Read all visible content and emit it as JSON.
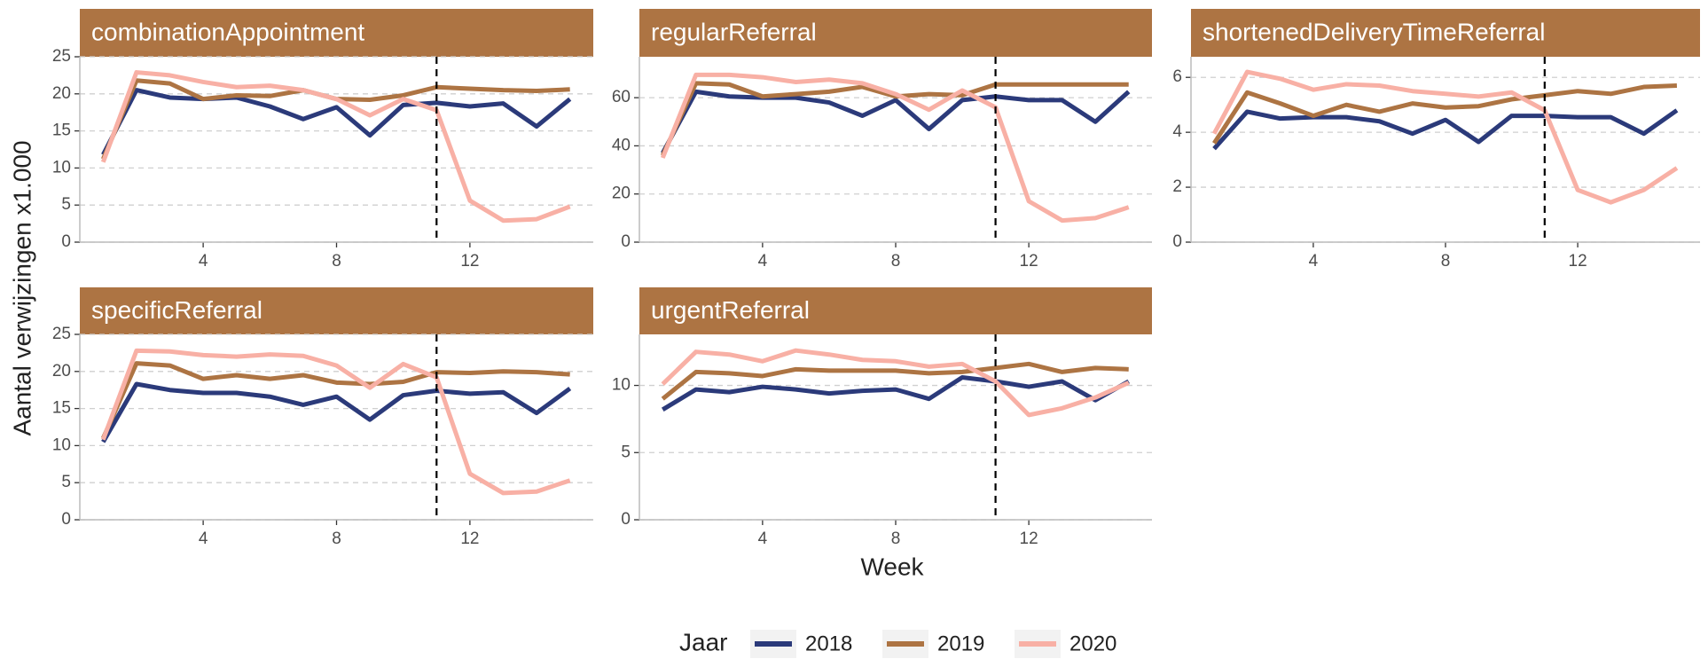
{
  "x_label": "Week",
  "y_label": "Aantal verwijzingen x1.000",
  "legend_title": "Jaar",
  "chart_data": [
    {
      "type": "line",
      "title": "combinationAppointment",
      "x": [
        1,
        2,
        3,
        4,
        5,
        6,
        7,
        8,
        9,
        10,
        11,
        12,
        13,
        14,
        15
      ],
      "series": [
        {
          "name": "2018",
          "color": "#2b3a7a",
          "values": [
            11.8,
            20.5,
            19.5,
            19.3,
            19.5,
            18.3,
            16.6,
            18.2,
            14.4,
            18.5,
            18.8,
            18.3,
            18.7,
            15.6,
            19.3
          ]
        },
        {
          "name": "2019",
          "color": "#ad7443",
          "values": [
            11.2,
            21.8,
            21.4,
            19.3,
            19.8,
            19.7,
            20.5,
            19.3,
            19.2,
            19.8,
            20.9,
            20.7,
            20.5,
            20.4,
            20.6
          ]
        },
        {
          "name": "2020",
          "color": "#f8b0a5",
          "values": [
            10.8,
            22.9,
            22.5,
            21.6,
            20.9,
            21.1,
            20.5,
            19.3,
            17.1,
            19.3,
            17.8,
            5.6,
            2.9,
            3.1,
            4.8
          ]
        }
      ],
      "xlim": [
        0.3,
        15.7
      ],
      "ylim": [
        0,
        25
      ],
      "xticks": [
        4,
        8,
        12
      ],
      "yticks": [
        0,
        5,
        10,
        15,
        20,
        25
      ],
      "vline": 11,
      "grid": true
    },
    {
      "type": "line",
      "title": "regularReferral",
      "x": [
        1,
        2,
        3,
        4,
        5,
        6,
        7,
        8,
        9,
        10,
        11,
        12,
        13,
        14,
        15
      ],
      "series": [
        {
          "name": "2018",
          "color": "#2b3a7a",
          "values": [
            37,
            62.5,
            60.5,
            60,
            60,
            58,
            52.5,
            59,
            47,
            59,
            60.5,
            59,
            59,
            50,
            62.5
          ]
        },
        {
          "name": "2019",
          "color": "#ad7443",
          "values": [
            36,
            66,
            65.5,
            60.5,
            61.5,
            62.5,
            64.5,
            60.5,
            61.5,
            61,
            65.5,
            65.5,
            65.5,
            65.5,
            65.5
          ]
        },
        {
          "name": "2020",
          "color": "#f8b0a5",
          "values": [
            35,
            69.5,
            69.5,
            68.5,
            66.5,
            67.5,
            66,
            61.5,
            55,
            63,
            56,
            17,
            9,
            10,
            14.5
          ]
        }
      ],
      "xlim": [
        0.3,
        15.7
      ],
      "ylim": [
        0,
        77
      ],
      "xticks": [
        4,
        8,
        12
      ],
      "yticks": [
        0,
        20,
        40,
        60
      ],
      "vline": 11,
      "grid": true
    },
    {
      "type": "line",
      "title": "shortenedDeliveryTimeReferral",
      "x": [
        1,
        2,
        3,
        4,
        5,
        6,
        7,
        8,
        9,
        10,
        11,
        12,
        13,
        14,
        15
      ],
      "series": [
        {
          "name": "2018",
          "color": "#2b3a7a",
          "values": [
            3.4,
            4.75,
            4.5,
            4.55,
            4.55,
            4.4,
            3.95,
            4.45,
            3.65,
            4.6,
            4.6,
            4.55,
            4.55,
            3.95,
            4.8
          ]
        },
        {
          "name": "2019",
          "color": "#ad7443",
          "values": [
            3.6,
            5.45,
            5.05,
            4.6,
            5.0,
            4.75,
            5.05,
            4.9,
            4.95,
            5.2,
            5.35,
            5.5,
            5.4,
            5.65,
            5.7
          ]
        },
        {
          "name": "2020",
          "color": "#f8b0a5",
          "values": [
            3.95,
            6.2,
            5.95,
            5.55,
            5.75,
            5.7,
            5.5,
            5.4,
            5.3,
            5.45,
            4.8,
            1.9,
            1.45,
            1.9,
            2.7
          ]
        }
      ],
      "xlim": [
        0.3,
        15.7
      ],
      "ylim": [
        0,
        6.75
      ],
      "xticks": [
        4,
        8,
        12
      ],
      "yticks": [
        0,
        2,
        4,
        6
      ],
      "vline": 11,
      "grid": true
    },
    {
      "type": "line",
      "title": "specificReferral",
      "x": [
        1,
        2,
        3,
        4,
        5,
        6,
        7,
        8,
        9,
        10,
        11,
        12,
        13,
        14,
        15
      ],
      "series": [
        {
          "name": "2018",
          "color": "#2b3a7a",
          "values": [
            10.5,
            18.3,
            17.5,
            17.1,
            17.1,
            16.6,
            15.5,
            16.6,
            13.5,
            16.8,
            17.4,
            17.0,
            17.2,
            14.4,
            17.7
          ]
        },
        {
          "name": "2019",
          "color": "#ad7443",
          "values": [
            11.0,
            21.1,
            20.8,
            19.0,
            19.5,
            19.0,
            19.5,
            18.5,
            18.3,
            18.6,
            19.9,
            19.8,
            20.0,
            19.9,
            19.6
          ]
        },
        {
          "name": "2020",
          "color": "#f8b0a5",
          "values": [
            10.8,
            22.8,
            22.7,
            22.2,
            22.0,
            22.3,
            22.1,
            20.8,
            17.8,
            21.0,
            19.2,
            6.2,
            3.6,
            3.8,
            5.3
          ]
        }
      ],
      "xlim": [
        0.3,
        15.7
      ],
      "ylim": [
        0,
        25
      ],
      "xticks": [
        4,
        8,
        12
      ],
      "yticks": [
        0,
        5,
        10,
        15,
        20,
        25
      ],
      "vline": 11,
      "grid": true
    },
    {
      "type": "line",
      "title": "urgentReferral",
      "x": [
        1,
        2,
        3,
        4,
        5,
        6,
        7,
        8,
        9,
        10,
        11,
        12,
        13,
        14,
        15
      ],
      "series": [
        {
          "name": "2018",
          "color": "#2b3a7a",
          "values": [
            8.2,
            9.7,
            9.5,
            9.9,
            9.7,
            9.4,
            9.6,
            9.7,
            9.0,
            10.6,
            10.3,
            9.9,
            10.3,
            8.9,
            10.3
          ]
        },
        {
          "name": "2019",
          "color": "#ad7443",
          "values": [
            9.0,
            11.0,
            10.9,
            10.7,
            11.2,
            11.1,
            11.1,
            11.1,
            10.9,
            11.0,
            11.3,
            11.6,
            11.0,
            11.3,
            11.2
          ]
        },
        {
          "name": "2020",
          "color": "#f8b0a5",
          "values": [
            10.1,
            12.5,
            12.3,
            11.8,
            12.6,
            12.3,
            11.9,
            11.8,
            11.4,
            11.6,
            10.3,
            7.8,
            8.3,
            9.1,
            10.2
          ]
        }
      ],
      "xlim": [
        0.3,
        15.7
      ],
      "ylim": [
        0,
        13.8
      ],
      "xticks": [
        4,
        8,
        12
      ],
      "yticks": [
        0,
        5,
        10
      ],
      "vline": 11,
      "grid": true
    }
  ]
}
